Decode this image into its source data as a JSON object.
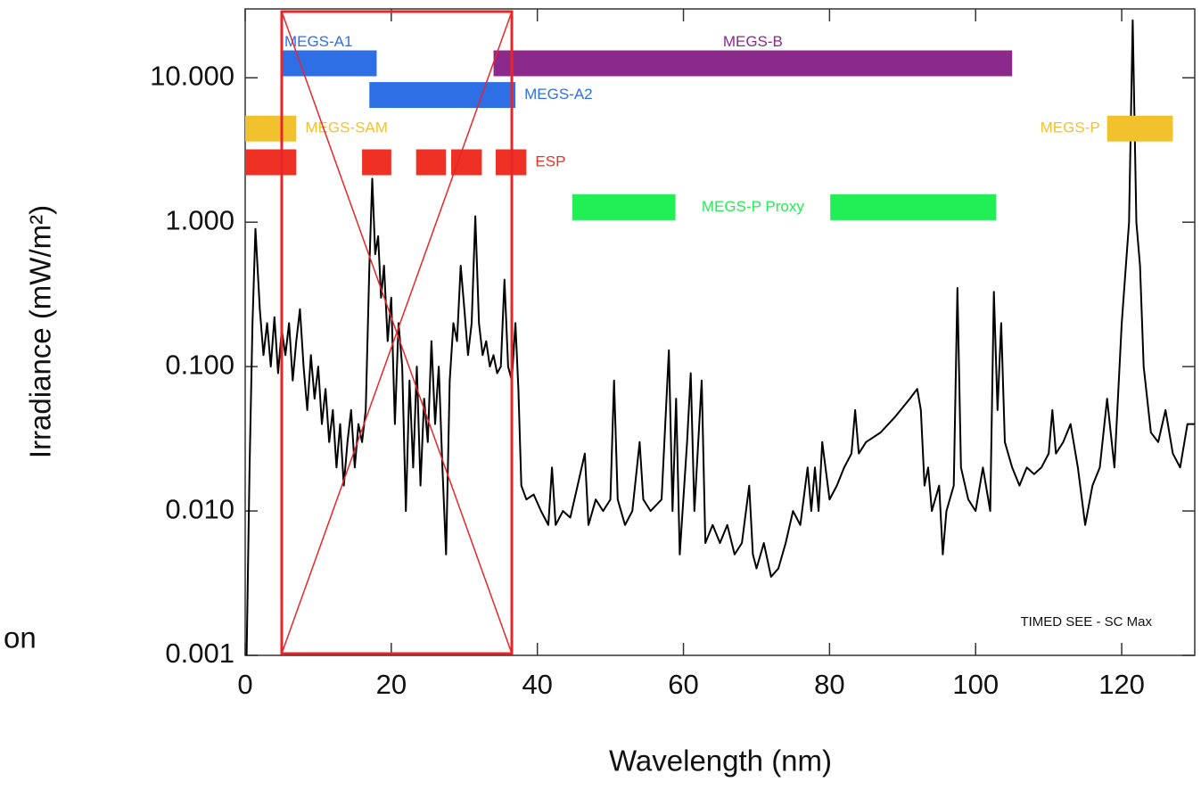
{
  "chart_data": {
    "type": "line",
    "xlabel": "Wavelength (nm)",
    "ylabel": "Irradiance (mW/m²)",
    "fragment_text": "on",
    "annotation": "TIMED SEE - SC Max",
    "ylog": true,
    "color": "#000000",
    "xlim": [
      0,
      130
    ],
    "xticks": [
      0,
      20,
      40,
      60,
      80,
      100,
      120
    ],
    "ylim": [
      0.001,
      30
    ],
    "yticks": [
      {
        "value": 0.001,
        "label": "0.001"
      },
      {
        "value": 0.01,
        "label": "0.010"
      },
      {
        "value": 0.1,
        "label": "0.100"
      },
      {
        "value": 1,
        "label": "1.000"
      },
      {
        "value": 10,
        "label": "10.000"
      }
    ],
    "highlight_xrange": [
      5,
      36.5
    ],
    "bands": [
      {
        "name": "MEGS-A1",
        "color": "#2f6fe6",
        "level": 12.6,
        "ranges": [
          [
            5,
            18
          ]
        ]
      },
      {
        "name": "MEGS-B",
        "color": "#8b2a8b",
        "level": 12.6,
        "ranges": [
          [
            34,
            105
          ]
        ]
      },
      {
        "name": "MEGS-A2",
        "color": "#2f6fe6",
        "level": 7.6,
        "ranges": [
          [
            17,
            37
          ]
        ]
      },
      {
        "name": "MEGS-SAM",
        "color": "#f2c12e",
        "level": 4.45,
        "ranges": [
          [
            0,
            7
          ]
        ]
      },
      {
        "name": "ESP",
        "color": "#ee3124",
        "level": 2.6,
        "ranges": [
          [
            0,
            7
          ],
          [
            16,
            20
          ],
          [
            23.4,
            27.5
          ],
          [
            28.2,
            32.4
          ],
          [
            34.3,
            38.5
          ]
        ]
      },
      {
        "name": "MEGS-P Proxy",
        "color": "#22ee55",
        "level": 1.27,
        "ranges": [
          [
            44.8,
            58.9
          ],
          [
            80.1,
            102.8
          ]
        ]
      },
      {
        "name": "MEGS-P",
        "color": "#f2c12e",
        "level": 4.45,
        "ranges": [
          [
            118,
            127
          ]
        ]
      }
    ],
    "x": [
      0.2,
      0.6,
      1,
      1.4,
      2,
      2.5,
      3,
      3.5,
      4,
      4.5,
      5,
      5.5,
      6,
      6.5,
      7,
      7.5,
      8,
      8.5,
      9,
      9.5,
      10,
      10.5,
      11,
      11.5,
      12,
      12.5,
      13,
      13.5,
      14,
      14.5,
      15,
      15.5,
      16,
      16.5,
      17,
      17.4,
      17.8,
      18.2,
      18.6,
      19,
      19.5,
      20,
      20.5,
      21,
      21.5,
      22,
      22.5,
      23,
      23.5,
      24,
      24.5,
      25,
      25.5,
      26,
      26.5,
      27,
      27.5,
      28,
      28.5,
      29,
      29.5,
      30,
      30.5,
      31,
      31.5,
      32,
      32.5,
      33,
      33.5,
      34,
      34.5,
      35,
      35.5,
      36,
      36.5,
      37,
      37.4,
      37.8,
      38.5,
      39.5,
      40.5,
      41.5,
      42,
      42.5,
      43.5,
      44.5,
      45.5,
      46.5,
      47,
      48,
      49,
      50,
      50.5,
      51,
      52,
      53,
      54,
      54.5,
      55.5,
      57,
      58,
      58.5,
      59,
      59.5,
      60.5,
      61,
      61.5,
      62.5,
      63,
      64,
      65,
      66,
      67,
      68,
      69,
      69.5,
      70,
      71,
      72,
      73,
      74,
      75,
      76,
      77,
      77.5,
      78,
      78.5,
      79,
      80,
      81,
      82,
      83,
      83.5,
      84,
      85,
      87,
      89,
      91,
      92,
      92.5,
      93,
      93.5,
      94,
      95,
      95.5,
      96,
      97,
      97.5,
      98,
      99,
      100,
      101,
      102,
      102.5,
      103,
      103.5,
      104,
      105,
      106,
      107,
      108,
      109,
      110,
      110.5,
      111,
      112,
      113,
      114,
      115,
      116,
      117,
      118,
      119,
      120,
      121,
      121.5,
      122,
      122.5,
      123,
      124,
      125,
      126,
      127,
      128,
      129,
      130
    ],
    "values": [
      0.001,
      0.02,
      0.2,
      0.9,
      0.25,
      0.12,
      0.2,
      0.1,
      0.22,
      0.09,
      0.18,
      0.12,
      0.2,
      0.08,
      0.15,
      0.25,
      0.1,
      0.05,
      0.12,
      0.06,
      0.1,
      0.04,
      0.07,
      0.03,
      0.05,
      0.02,
      0.04,
      0.015,
      0.03,
      0.05,
      0.02,
      0.04,
      0.03,
      0.05,
      0.5,
      2.0,
      0.6,
      0.8,
      0.3,
      0.5,
      0.15,
      0.3,
      0.04,
      0.2,
      0.1,
      0.01,
      0.08,
      0.02,
      0.1,
      0.015,
      0.06,
      0.03,
      0.15,
      0.04,
      0.1,
      0.02,
      0.005,
      0.08,
      0.2,
      0.15,
      0.5,
      0.25,
      0.12,
      0.2,
      1.1,
      0.2,
      0.12,
      0.15,
      0.1,
      0.12,
      0.09,
      0.1,
      0.4,
      0.1,
      0.08,
      0.2,
      0.07,
      0.015,
      0.012,
      0.013,
      0.01,
      0.008,
      0.02,
      0.008,
      0.01,
      0.009,
      0.015,
      0.025,
      0.008,
      0.012,
      0.01,
      0.012,
      0.08,
      0.012,
      0.008,
      0.01,
      0.03,
      0.012,
      0.01,
      0.012,
      0.13,
      0.01,
      0.06,
      0.005,
      0.03,
      0.09,
      0.01,
      0.08,
      0.006,
      0.008,
      0.006,
      0.008,
      0.005,
      0.006,
      0.015,
      0.005,
      0.004,
      0.006,
      0.0035,
      0.004,
      0.006,
      0.01,
      0.008,
      0.02,
      0.01,
      0.02,
      0.01,
      0.03,
      0.012,
      0.015,
      0.02,
      0.025,
      0.05,
      0.025,
      0.03,
      0.035,
      0.045,
      0.06,
      0.07,
      0.05,
      0.015,
      0.02,
      0.01,
      0.015,
      0.005,
      0.01,
      0.015,
      0.35,
      0.02,
      0.012,
      0.01,
      0.02,
      0.01,
      0.33,
      0.05,
      0.2,
      0.03,
      0.02,
      0.015,
      0.02,
      0.018,
      0.02,
      0.025,
      0.05,
      0.025,
      0.03,
      0.04,
      0.02,
      0.008,
      0.015,
      0.02,
      0.06,
      0.02,
      0.2,
      1.0,
      25,
      1.0,
      0.5,
      0.1,
      0.035,
      0.03,
      0.05,
      0.025,
      0.02,
      0.04,
      0.04
    ]
  }
}
